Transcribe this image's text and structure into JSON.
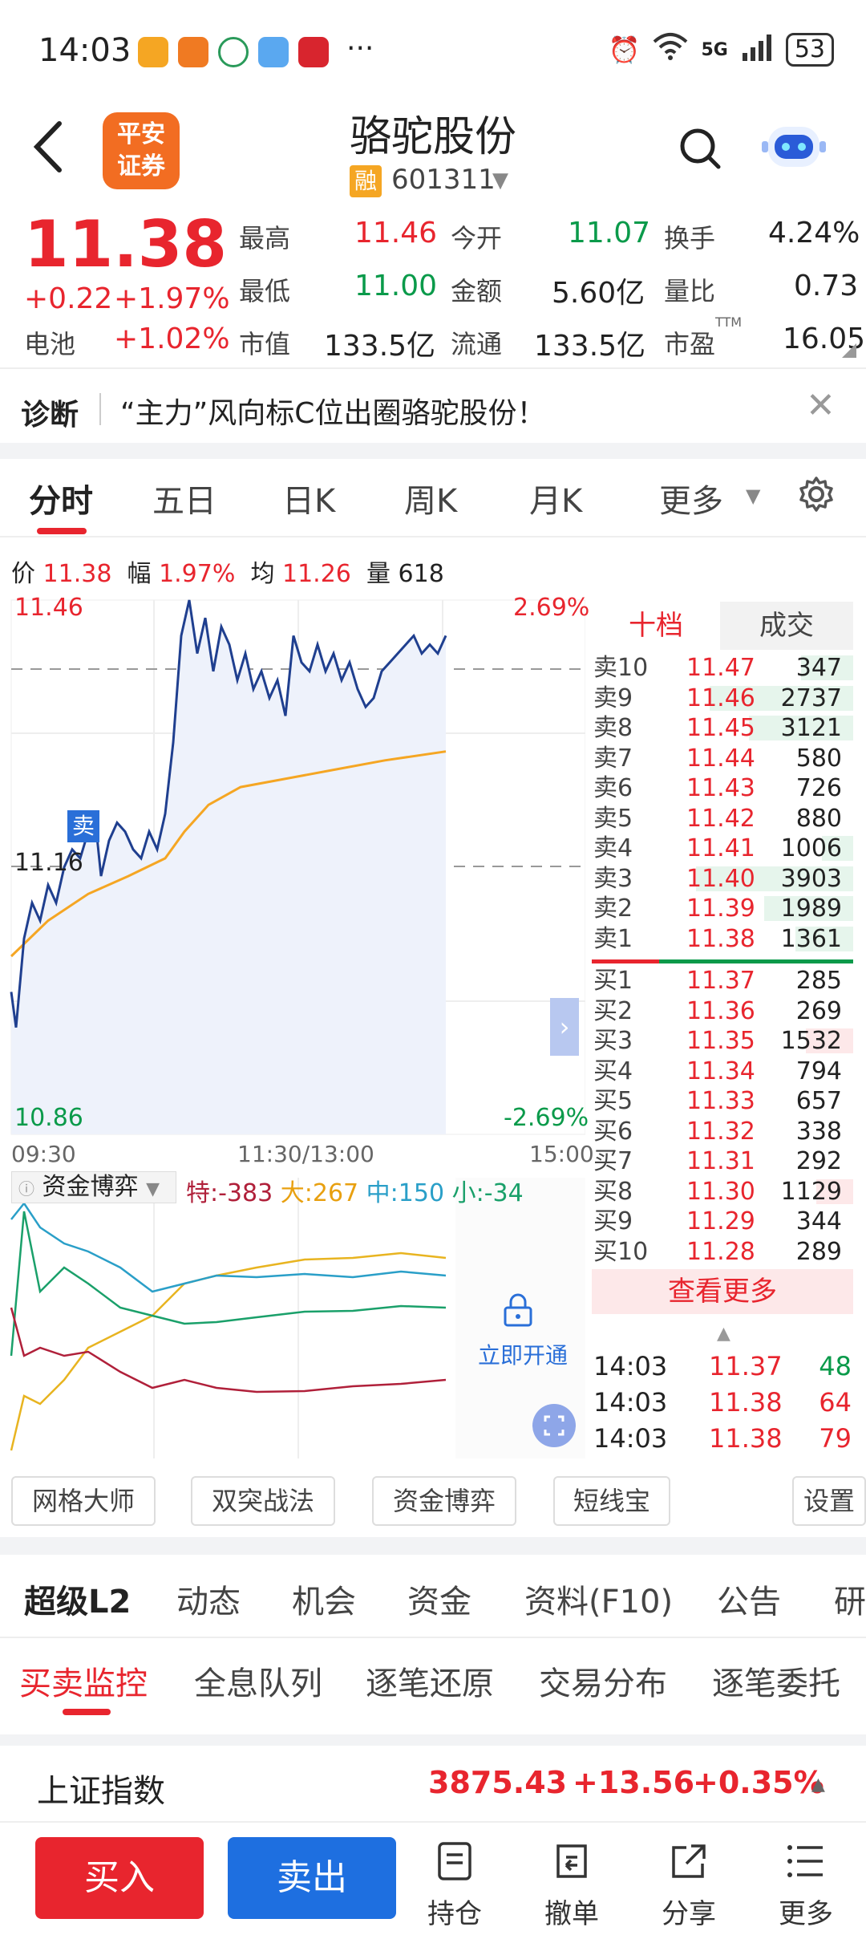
{
  "status_bar": {
    "time": "14:03",
    "net": "5G",
    "battery": "53",
    "more": "···"
  },
  "header": {
    "title": "骆驼股份",
    "badge": "融",
    "code": "601311"
  },
  "quote": {
    "price": "11.38",
    "change": "+0.22",
    "change_pct": "+1.97%",
    "battery_label": "电池",
    "battery_pct": "+1.02%",
    "high_label": "最高",
    "high": "11.46",
    "open_label": "今开",
    "open": "11.07",
    "turnover_label": "换手",
    "turnover": "4.24%",
    "low_label": "最低",
    "low": "11.00",
    "amount_label": "金额",
    "amount": "5.60亿",
    "vol_ratio_label": "量比",
    "vol_ratio": "0.73",
    "mcap_label": "市值",
    "mcap": "133.5亿",
    "float_label": "流通",
    "float": "133.5亿",
    "pe_label": "市盈",
    "pe_sup": "TTM",
    "pe": "16.05"
  },
  "diagnosis": {
    "title": "诊断",
    "text": "“主力”风向标C位出圈骆驼股份！"
  },
  "chart_tabs": [
    "分时",
    "五日",
    "日K",
    "周K",
    "月K",
    "更多"
  ],
  "info_row": {
    "price_label": "价",
    "price": "11.38",
    "amp_label": "幅",
    "amp": "1.97%",
    "avg_label": "均",
    "avg": "11.26",
    "vol_label": "量",
    "vol": "618"
  },
  "chart_labels": {
    "y_top": "11.46",
    "y_mid": "11.16",
    "y_bot": "10.86",
    "pct_top": "2.69%",
    "pct_bot": "-2.69%",
    "t_start": "09:30",
    "t_mid": "11:30/13:00",
    "t_end": "15:00",
    "sell_marker": "卖"
  },
  "fund_game": {
    "label": "资金博弈",
    "te": "特:-383",
    "da": "大:267",
    "zhong": "中:150",
    "xiao": "小:-34",
    "unlock": "立即开通"
  },
  "order_book": {
    "tab_levels": "十档",
    "tab_trades": "成交",
    "asks": [
      {
        "label": "卖10",
        "price": "11.47",
        "vol": "347"
      },
      {
        "label": "卖9",
        "price": "11.46",
        "vol": "2737"
      },
      {
        "label": "卖8",
        "price": "11.45",
        "vol": "3121"
      },
      {
        "label": "卖7",
        "price": "11.44",
        "vol": "580"
      },
      {
        "label": "卖6",
        "price": "11.43",
        "vol": "726"
      },
      {
        "label": "卖5",
        "price": "11.42",
        "vol": "880"
      },
      {
        "label": "卖4",
        "price": "11.41",
        "vol": "1006"
      },
      {
        "label": "卖3",
        "price": "11.40",
        "vol": "3903"
      },
      {
        "label": "卖2",
        "price": "11.39",
        "vol": "1989"
      },
      {
        "label": "卖1",
        "price": "11.38",
        "vol": "1361"
      }
    ],
    "bids": [
      {
        "label": "买1",
        "price": "11.37",
        "vol": "285"
      },
      {
        "label": "买2",
        "price": "11.36",
        "vol": "269"
      },
      {
        "label": "买3",
        "price": "11.35",
        "vol": "1532"
      },
      {
        "label": "买4",
        "price": "11.34",
        "vol": "794"
      },
      {
        "label": "买5",
        "price": "11.33",
        "vol": "657"
      },
      {
        "label": "买6",
        "price": "11.32",
        "vol": "338"
      },
      {
        "label": "买7",
        "price": "11.31",
        "vol": "292"
      },
      {
        "label": "买8",
        "price": "11.30",
        "vol": "1129"
      },
      {
        "label": "买9",
        "price": "11.29",
        "vol": "344"
      },
      {
        "label": "买10",
        "price": "11.28",
        "vol": "289"
      }
    ],
    "see_more": "查看更多",
    "ticks": [
      {
        "time": "14:03",
        "price": "11.37",
        "vol": "48"
      },
      {
        "time": "14:03",
        "price": "11.38",
        "vol": "64"
      },
      {
        "time": "14:03",
        "price": "11.38",
        "vol": "79"
      }
    ]
  },
  "tools": [
    "网格大师",
    "双突战法",
    "资金博弈",
    "短线宝",
    "设置"
  ],
  "lower_tabs": [
    "超级L2",
    "动态",
    "机会",
    "资金",
    "资料(F10)",
    "公告",
    "研"
  ],
  "sub_tabs": [
    "买卖监控",
    "全息队列",
    "逐笔还原",
    "交易分布",
    "逐笔委托"
  ],
  "index": {
    "name": "上证指数",
    "value": "3875.43",
    "change": "+13.56",
    "pct": "+0.35%"
  },
  "bottom": {
    "buy": "买入",
    "sell": "卖出",
    "hold": "持仓",
    "cancel": "撤单",
    "share": "分享",
    "more": "更多"
  },
  "colors": {
    "up": "#e8252e",
    "down": "#0a9a4a",
    "accent_blue": "#1e6fe0",
    "logo_orange": "#f26d22"
  }
}
